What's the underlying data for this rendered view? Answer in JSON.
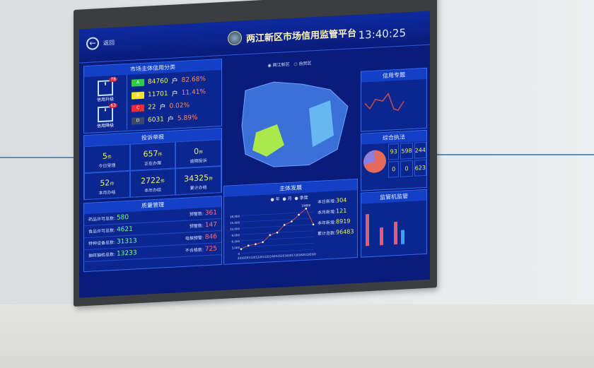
{
  "header": {
    "back_label": "返回",
    "title": "两江新区市场信用监管平台",
    "time": "13:40:25",
    "map_options": [
      "两江新区",
      "自贸区"
    ]
  },
  "credit": {
    "title": "市场主体信用分类",
    "upgrade_label": "信用升级",
    "upgrade_count": "78",
    "downgrade_label": "信用降级",
    "downgrade_count": "63",
    "levels": [
      {
        "grade": "A",
        "count": "84760",
        "unit": "户",
        "pct": "82.68%",
        "color": "#2ecc4a"
      },
      {
        "grade": "B",
        "count": "11701",
        "unit": "户",
        "pct": "11.41%",
        "color": "#f2e22a"
      },
      {
        "grade": "C",
        "count": "22",
        "unit": "户",
        "pct": "0.02%",
        "color": "#f0283c"
      },
      {
        "grade": "D",
        "count": "6031",
        "unit": "户",
        "pct": "5.89%",
        "color": "#3a4a66"
      }
    ]
  },
  "complaints": {
    "title": "投诉举报",
    "unit": "件",
    "items": [
      {
        "value": "5",
        "label": "今日受理"
      },
      {
        "value": "657",
        "label": "正在办理"
      },
      {
        "value": "0",
        "label": "逾期投诉"
      },
      {
        "value": "52",
        "label": "本月办结"
      },
      {
        "value": "2722",
        "label": "本年办结"
      },
      {
        "value": "34325",
        "label": "累计办结"
      }
    ]
  },
  "quality": {
    "title": "质量管理",
    "left": [
      {
        "label": "药品许可总数:",
        "value": "580"
      },
      {
        "label": "食品许可总数:",
        "value": "4621"
      },
      {
        "label": "特种设备总数:",
        "value": "31313"
      },
      {
        "label": "抽样抽检总数:",
        "value": "13233"
      }
    ],
    "right": [
      {
        "label": "预警数:",
        "value": "361"
      },
      {
        "label": "预警数:",
        "value": "147"
      },
      {
        "label": "电梯预警:",
        "value": "846"
      },
      {
        "label": "不合格数:",
        "value": "725"
      }
    ]
  },
  "development": {
    "title": "主体发展",
    "legend": [
      "年",
      "月",
      "季度"
    ],
    "stats": [
      {
        "label": "本日新增:",
        "value": "304"
      },
      {
        "label": "本月新增:",
        "value": "121"
      },
      {
        "label": "本年新增:",
        "value": "8919"
      },
      {
        "label": "累计总数:",
        "value": "96483"
      }
    ]
  },
  "chart_data": {
    "type": "line",
    "x": [
      "2010",
      "2011",
      "2012",
      "2013",
      "2014",
      "2015",
      "2016",
      "2017",
      "2018",
      "2019",
      "2020"
    ],
    "values": [
      2000,
      3500,
      4000,
      4800,
      8000,
      9000,
      12500,
      14000,
      17000,
      19800,
      12000
    ],
    "yticks": [
      "0",
      "3,000",
      "6,000",
      "9,000",
      "12,000",
      "15,000",
      "18,000"
    ],
    "ylim": [
      0,
      21000
    ],
    "peak_label": "19800",
    "line_color": "#c0504d"
  },
  "right": {
    "topic_title": "信用专题",
    "enforcement_title": "综合执法",
    "enforcement": [
      {
        "value": "93"
      },
      {
        "value": "598"
      },
      {
        "value": "244"
      },
      {
        "value": "0"
      },
      {
        "value": "0"
      },
      {
        "value": "623"
      }
    ],
    "supervision_title": "监管机监管"
  }
}
